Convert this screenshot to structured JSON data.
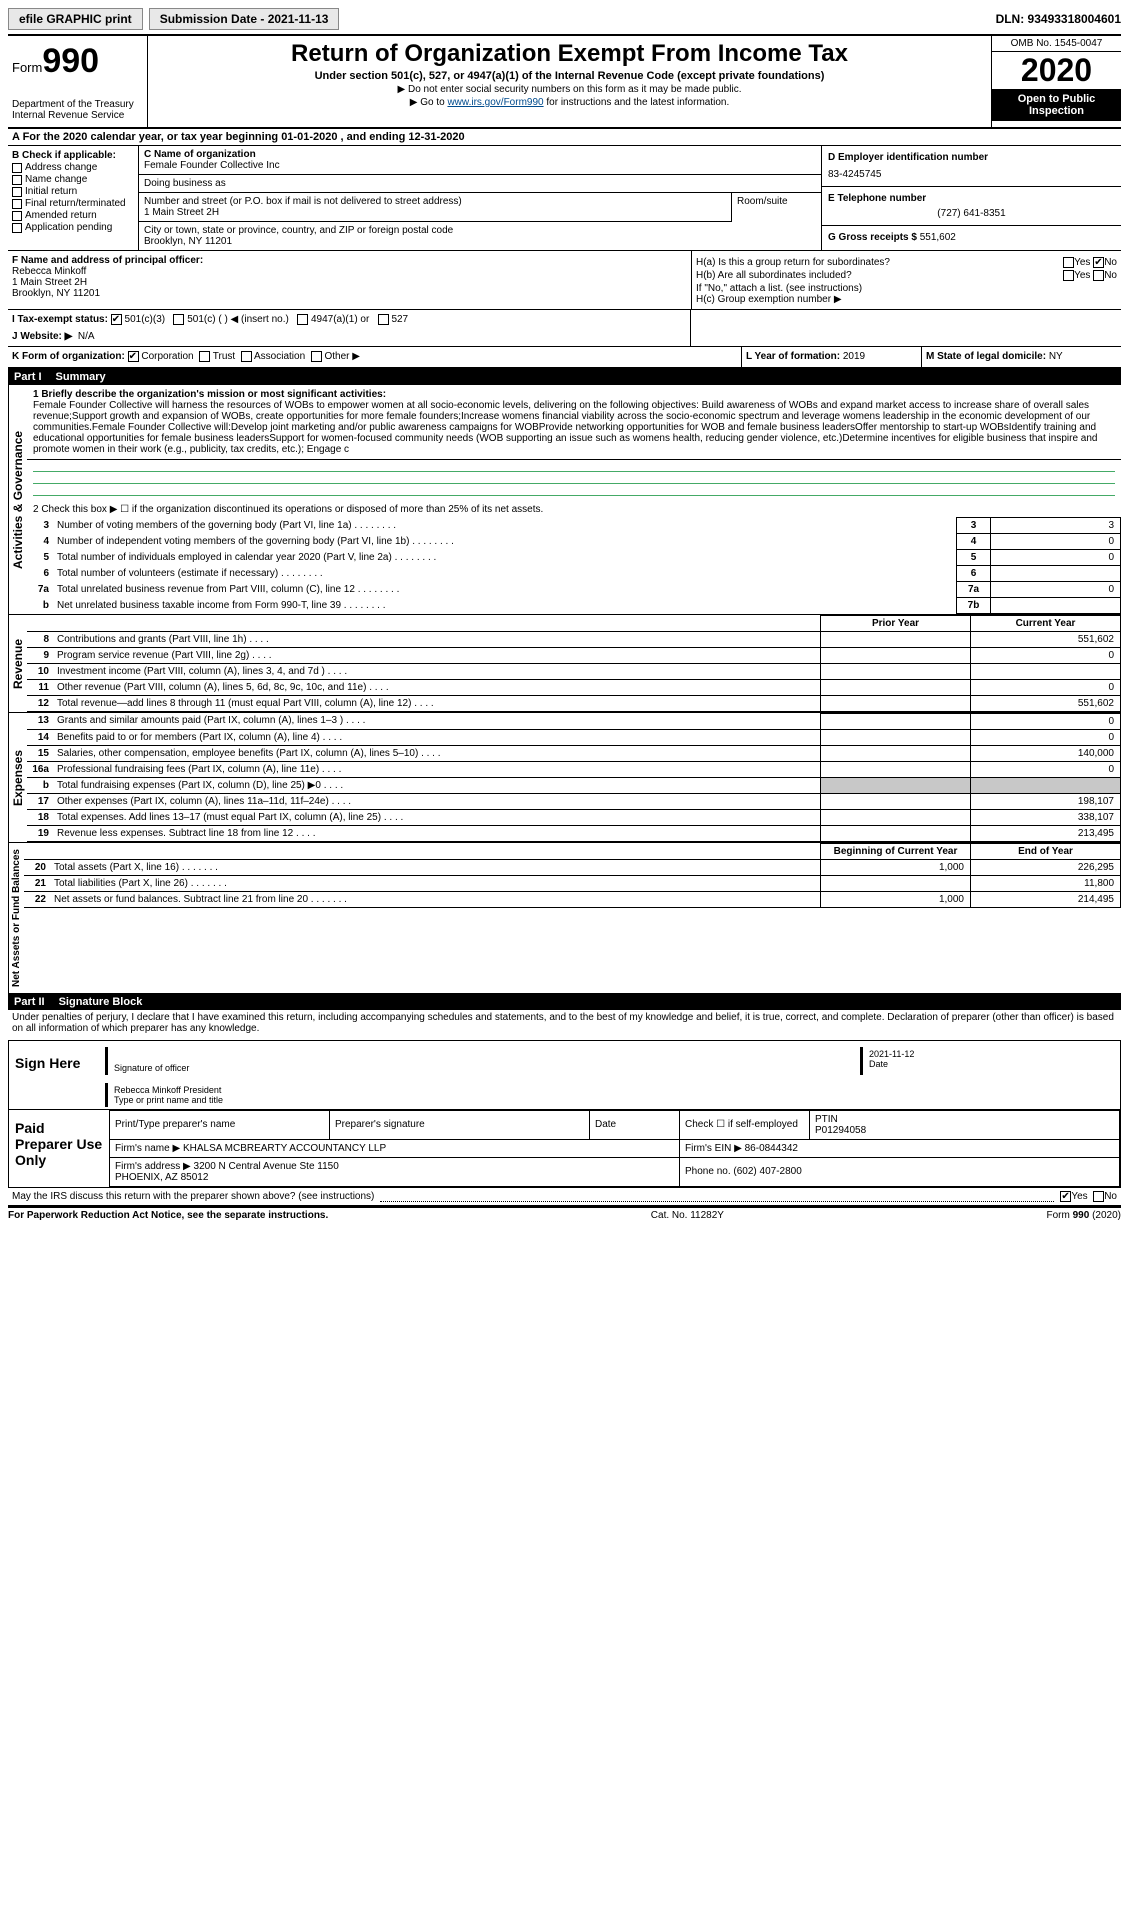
{
  "topbar": {
    "efile": "efile GRAPHIC print",
    "submission_label": "Submission Date - 2021-11-13",
    "dln": "DLN: 93493318004601"
  },
  "header": {
    "form_prefix": "Form",
    "form_number": "990",
    "dept": "Department of the Treasury\nInternal Revenue Service",
    "title": "Return of Organization Exempt From Income Tax",
    "subtitle": "Under section 501(c), 527, or 4947(a)(1) of the Internal Revenue Code (except private foundations)",
    "note1": "▶ Do not enter social security numbers on this form as it may be made public.",
    "note2_pre": "▶ Go to ",
    "note2_link": "www.irs.gov/Form990",
    "note2_post": " for instructions and the latest information.",
    "omb": "OMB No. 1545-0047",
    "year": "2020",
    "openpub": "Open to Public Inspection"
  },
  "rowA": "A For the 2020 calendar year, or tax year beginning 01-01-2020   , and ending 12-31-2020",
  "B": {
    "label": "B Check if applicable:",
    "items": [
      "Address change",
      "Name change",
      "Initial return",
      "Final return/terminated",
      "Amended return",
      "Application pending"
    ]
  },
  "C": {
    "name_label": "C Name of organization",
    "name": "Female Founder Collective Inc",
    "dba_label": "Doing business as",
    "street_label": "Number and street (or P.O. box if mail is not delivered to street address)",
    "room_label": "Room/suite",
    "street": "1 Main Street 2H",
    "city_label": "City or town, state or province, country, and ZIP or foreign postal code",
    "city": "Brooklyn, NY  11201"
  },
  "D": {
    "label": "D Employer identification number",
    "value": "83-4245745"
  },
  "E": {
    "label": "E Telephone number",
    "value": "(727) 641-8351"
  },
  "G": {
    "label": "G Gross receipts $",
    "value": "551,602"
  },
  "F": {
    "label": "F  Name and address of principal officer:",
    "name": "Rebecca Minkoff",
    "addr1": "1 Main Street 2H",
    "addr2": "Brooklyn, NY  11201"
  },
  "H": {
    "a_label": "H(a)  Is this a group return for subordinates?",
    "b_label": "H(b)  Are all subordinates included?",
    "b_note": "If \"No,\" attach a list. (see instructions)",
    "c_label": "H(c)  Group exemption number ▶",
    "yes": "Yes",
    "no": "No"
  },
  "I": {
    "label": "I   Tax-exempt status:",
    "opts": [
      "501(c)(3)",
      "501(c) (  ) ◀ (insert no.)",
      "4947(a)(1) or",
      "527"
    ]
  },
  "J": {
    "label": "J   Website: ▶",
    "value": "N/A"
  },
  "K": {
    "label": "K Form of organization:",
    "opts": [
      "Corporation",
      "Trust",
      "Association",
      "Other ▶"
    ]
  },
  "L": {
    "label": "L Year of formation:",
    "value": "2019"
  },
  "M": {
    "label": "M State of legal domicile:",
    "value": "NY"
  },
  "part1": {
    "label": "Part I",
    "title": "Summary"
  },
  "summary": {
    "mission_label": "1   Briefly describe the organization's mission or most significant activities:",
    "mission": "Female Founder Collective will harness the resources of WOBs to empower women at all socio-economic levels, delivering on the following objectives: Build awareness of WOBs and expand market access to increase share of overall sales revenue;Support growth and expansion of WOBs, create opportunities for more female founders;Increase womens financial viability across the socio-economic spectrum and leverage womens leadership in the economic development of our communities.Female Founder Collective will:Develop joint marketing and/or public awareness campaigns for WOBProvide networking opportunities for WOB and female business leadersOffer mentorship to start-up WOBsIdentify training and educational opportunities for female business leadersSupport for women-focused community needs (WOB supporting an issue such as womens health, reducing gender violence, etc.)Determine incentives for eligible business that inspire and promote women in their work (e.g., publicity, tax credits, etc.); Engage c",
    "line2": "2   Check this box ▶ ☐ if the organization discontinued its operations or disposed of more than 25% of its net assets.",
    "rows_gov": [
      {
        "n": "3",
        "lab": "Number of voting members of the governing body (Part VI, line 1a)",
        "box": "3",
        "val": "3"
      },
      {
        "n": "4",
        "lab": "Number of independent voting members of the governing body (Part VI, line 1b)",
        "box": "4",
        "val": "0"
      },
      {
        "n": "5",
        "lab": "Total number of individuals employed in calendar year 2020 (Part V, line 2a)",
        "box": "5",
        "val": "0"
      },
      {
        "n": "6",
        "lab": "Total number of volunteers (estimate if necessary)",
        "box": "6",
        "val": ""
      },
      {
        "n": "7a",
        "lab": "Total unrelated business revenue from Part VIII, column (C), line 12",
        "box": "7a",
        "val": "0"
      },
      {
        "n": "b",
        "lab": "Net unrelated business taxable income from Form 990-T, line 39",
        "box": "7b",
        "val": ""
      }
    ],
    "col_prior": "Prior Year",
    "col_curr": "Current Year",
    "rows_rev": [
      {
        "n": "8",
        "lab": "Contributions and grants (Part VIII, line 1h)",
        "prior": "",
        "curr": "551,602"
      },
      {
        "n": "9",
        "lab": "Program service revenue (Part VIII, line 2g)",
        "prior": "",
        "curr": "0"
      },
      {
        "n": "10",
        "lab": "Investment income (Part VIII, column (A), lines 3, 4, and 7d )",
        "prior": "",
        "curr": ""
      },
      {
        "n": "11",
        "lab": "Other revenue (Part VIII, column (A), lines 5, 6d, 8c, 9c, 10c, and 11e)",
        "prior": "",
        "curr": "0"
      },
      {
        "n": "12",
        "lab": "Total revenue—add lines 8 through 11 (must equal Part VIII, column (A), line 12)",
        "prior": "",
        "curr": "551,602"
      }
    ],
    "rows_exp": [
      {
        "n": "13",
        "lab": "Grants and similar amounts paid (Part IX, column (A), lines 1–3 )",
        "prior": "",
        "curr": "0"
      },
      {
        "n": "14",
        "lab": "Benefits paid to or for members (Part IX, column (A), line 4)",
        "prior": "",
        "curr": "0"
      },
      {
        "n": "15",
        "lab": "Salaries, other compensation, employee benefits (Part IX, column (A), lines 5–10)",
        "prior": "",
        "curr": "140,000"
      },
      {
        "n": "16a",
        "lab": "Professional fundraising fees (Part IX, column (A), line 11e)",
        "prior": "",
        "curr": "0"
      },
      {
        "n": "b",
        "lab": "Total fundraising expenses (Part IX, column (D), line 25) ▶0",
        "prior": "GREY",
        "curr": "GREY"
      },
      {
        "n": "17",
        "lab": "Other expenses (Part IX, column (A), lines 11a–11d, 11f–24e)",
        "prior": "",
        "curr": "198,107"
      },
      {
        "n": "18",
        "lab": "Total expenses. Add lines 13–17 (must equal Part IX, column (A), line 25)",
        "prior": "",
        "curr": "338,107"
      },
      {
        "n": "19",
        "lab": "Revenue less expenses. Subtract line 18 from line 12",
        "prior": "",
        "curr": "213,495"
      }
    ],
    "col_beg": "Beginning of Current Year",
    "col_end": "End of Year",
    "rows_net": [
      {
        "n": "20",
        "lab": "Total assets (Part X, line 16)",
        "beg": "1,000",
        "end": "226,295"
      },
      {
        "n": "21",
        "lab": "Total liabilities (Part X, line 26)",
        "beg": "",
        "end": "11,800"
      },
      {
        "n": "22",
        "lab": "Net assets or fund balances. Subtract line 21 from line 20",
        "beg": "1,000",
        "end": "214,495"
      }
    ],
    "side_gov": "Activities & Governance",
    "side_rev": "Revenue",
    "side_exp": "Expenses",
    "side_net": "Net Assets or Fund Balances"
  },
  "part2": {
    "label": "Part II",
    "title": "Signature Block"
  },
  "sig": {
    "perjury": "Under penalties of perjury, I declare that I have examined this return, including accompanying schedules and statements, and to the best of my knowledge and belief, it is true, correct, and complete. Declaration of preparer (other than officer) is based on all information of which preparer has any knowledge.",
    "sign_here": "Sign Here",
    "sig_officer": "Signature of officer",
    "date": "2021-11-12",
    "date_label": "Date",
    "name": "Rebecca Minkoff President",
    "name_label": "Type or print name and title",
    "paid_label": "Paid Preparer Use Only",
    "prep_name_label": "Print/Type preparer's name",
    "prep_sig_label": "Preparer's signature",
    "check_self": "Check ☐ if self-employed",
    "ptin_label": "PTIN",
    "ptin": "P01294058",
    "firm_name_label": "Firm's name    ▶",
    "firm_name": "KHALSA MCBREARTY ACCOUNTANCY LLP",
    "firm_ein_label": "Firm's EIN ▶",
    "firm_ein": "86-0844342",
    "firm_addr_label": "Firm's address ▶",
    "firm_addr": "3200 N Central Avenue Ste 1150\nPHOENIX, AZ  85012",
    "phone_label": "Phone no.",
    "phone": "(602) 407-2800",
    "discuss": "May the IRS discuss this return with the preparer shown above? (see instructions)",
    "yes": "Yes",
    "no": "No"
  },
  "footer": {
    "left": "For Paperwork Reduction Act Notice, see the separate instructions.",
    "mid": "Cat. No. 11282Y",
    "right": "Form 990 (2020)"
  }
}
